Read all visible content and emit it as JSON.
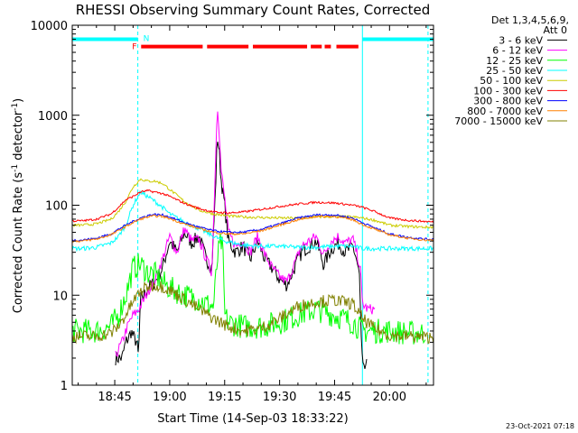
{
  "chart_data": {
    "type": "line",
    "title": "RHESSI Observing Summary Count Rates, Corrected",
    "xlabel": "Start Time (14-Sep-03 18:33:22)",
    "ylabel": "Corrected Count Rate (s^-1 detector^-1)",
    "ylabel_main": "Corrected Count Rate (s",
    "ylabel_exp1": "-1",
    "ylabel_mid": " detector",
    "ylabel_exp2": "-1",
    "ylabel_end": ")",
    "yscale": "log",
    "ylim": [
      1,
      10000
    ],
    "xlim_minutes": [
      33.4,
      132.0
    ],
    "x_unit": "minutes after 18:00 UT",
    "x_ticks": [
      {
        "value": 45,
        "label": "18:45"
      },
      {
        "value": 60,
        "label": "19:00"
      },
      {
        "value": 75,
        "label": "19:15"
      },
      {
        "value": 90,
        "label": "19:30"
      },
      {
        "value": 105,
        "label": "19:45"
      },
      {
        "value": 120,
        "label": "20:00"
      }
    ],
    "y_ticks": [
      {
        "value": 1,
        "label": "1"
      },
      {
        "value": 10,
        "label": "10"
      },
      {
        "value": 100,
        "label": "100"
      },
      {
        "value": 1000,
        "label": "1000"
      },
      {
        "value": 10000,
        "label": "10000"
      }
    ],
    "legend_header": [
      "Det 1,3,4,5,6,9,",
      "Att 0"
    ],
    "legend_placement": "right",
    "timestamp": "23-Oct-2021 07:18",
    "flags": {
      "night_label": "N",
      "flare_label": "F",
      "night_color": "#00ffff",
      "flare_color": "#ff0000",
      "night_level": 7000,
      "flare_level": 5800,
      "night_segments": [
        [
          33.4,
          51.3
        ],
        [
          112.6,
          132.0
        ]
      ],
      "flare_segments": [
        [
          52.2,
          69.0
        ],
        [
          70.2,
          81.5
        ],
        [
          82.7,
          97.5
        ],
        [
          98.5,
          101.5
        ],
        [
          102.3,
          104.0
        ],
        [
          105.5,
          111.5
        ]
      ],
      "boundary_lines": [
        33.4,
        51.3,
        112.6,
        130.5
      ]
    },
    "series": [
      {
        "name": "3 - 6 keV",
        "color": "#000000",
        "x": [
          45,
          46,
          47,
          48,
          49,
          49.5,
          50,
          51,
          51.5,
          52,
          53,
          54,
          56,
          58,
          60,
          62,
          64,
          66,
          68,
          70,
          71.5,
          72.5,
          73,
          73.5,
          74,
          75,
          76,
          78,
          80,
          82,
          84,
          86,
          88,
          90,
          92,
          94,
          96,
          98,
          100,
          102,
          104,
          106,
          108,
          110,
          111,
          111.8,
          112.3,
          112.6,
          113,
          113.5,
          114
        ],
        "values": [
          2,
          2,
          2,
          3,
          3.5,
          4,
          3.5,
          3,
          2,
          9,
          10,
          12,
          14,
          20,
          40,
          30,
          50,
          38,
          45,
          25,
          20,
          150,
          600,
          400,
          200,
          100,
          40,
          30,
          35,
          25,
          40,
          25,
          20,
          15,
          13,
          20,
          30,
          35,
          40,
          22,
          32,
          38,
          30,
          35,
          25,
          16,
          3,
          1.7,
          1.4,
          1.7,
          1.6
        ]
      },
      {
        "name": "6 - 12 keV",
        "color": "#ff00ff",
        "x": [
          45,
          46,
          47,
          48,
          49,
          50,
          51,
          52,
          53,
          54,
          56,
          58,
          60,
          62,
          64,
          66,
          68,
          70,
          71.5,
          72.5,
          73,
          73.5,
          74,
          75,
          76,
          78,
          80,
          82,
          84,
          86,
          88,
          90,
          92,
          94,
          96,
          98,
          100,
          102,
          104,
          106,
          108,
          110,
          111,
          112,
          112.6,
          114,
          116
        ],
        "values": [
          2,
          2.5,
          3,
          4,
          5,
          6,
          6.5,
          7.5,
          9,
          11,
          15,
          25,
          45,
          30,
          55,
          40,
          42,
          25,
          18,
          300,
          1400,
          700,
          250,
          120,
          50,
          35,
          40,
          30,
          45,
          28,
          20,
          16,
          14,
          22,
          35,
          40,
          45,
          28,
          40,
          45,
          38,
          42,
          30,
          20,
          8,
          7,
          7
        ]
      },
      {
        "name": "12 - 25 keV",
        "color": "#00ff00",
        "x": [
          33.4,
          36,
          40,
          44,
          46,
          48,
          50,
          52,
          54,
          56,
          58,
          60,
          64,
          68,
          70,
          72,
          73,
          74,
          74.5,
          75,
          76,
          80,
          85,
          90,
          95,
          100,
          105,
          110,
          112.6,
          115,
          120,
          125,
          130
        ],
        "values": [
          4,
          4,
          4,
          4.5,
          6,
          10,
          20,
          22,
          18,
          17,
          14,
          12,
          10,
          9,
          8,
          7.5,
          25,
          40,
          30,
          6,
          5,
          4.5,
          4.5,
          5,
          6,
          7,
          6,
          5,
          4,
          4,
          4,
          3.8,
          3.8
        ]
      },
      {
        "name": "25 - 50 keV",
        "color": "#00ffff",
        "x": [
          33.4,
          36,
          40,
          44,
          46,
          48,
          50,
          52,
          54,
          56,
          58,
          60,
          64,
          68,
          72,
          75,
          80,
          85,
          90,
          95,
          100,
          105,
          110,
          112.6,
          116,
          120,
          125,
          130,
          132
        ],
        "values": [
          33,
          33,
          34,
          38,
          45,
          60,
          100,
          140,
          125,
          110,
          95,
          80,
          65,
          55,
          45,
          40,
          36,
          35,
          35,
          34,
          34,
          35,
          35,
          33,
          33,
          33,
          33,
          33,
          33
        ]
      },
      {
        "name": "50 - 100 keV",
        "color": "#cccc00",
        "x": [
          33.4,
          36,
          40,
          44,
          46,
          48,
          50,
          52,
          54,
          56,
          58,
          60,
          64,
          68,
          72,
          76,
          80,
          85,
          90,
          95,
          100,
          105,
          110,
          112.6,
          116,
          120,
          125,
          130,
          132
        ],
        "values": [
          60,
          60,
          62,
          70,
          85,
          110,
          160,
          195,
          185,
          185,
          175,
          150,
          110,
          88,
          80,
          76,
          74,
          73,
          72,
          72,
          74,
          75,
          74,
          72,
          68,
          60,
          58,
          57,
          57
        ]
      },
      {
        "name": "100 - 300 keV",
        "color": "#ff0000",
        "x": [
          33.4,
          36,
          40,
          44,
          46,
          48,
          50,
          52,
          54,
          56,
          58,
          60,
          64,
          68,
          72,
          76,
          80,
          85,
          90,
          95,
          100,
          105,
          110,
          112.6,
          116,
          120,
          125,
          130,
          132
        ],
        "values": [
          67,
          67,
          70,
          80,
          95,
          115,
          125,
          140,
          145,
          140,
          135,
          125,
          105,
          92,
          84,
          82,
          84,
          90,
          97,
          103,
          108,
          106,
          100,
          95,
          85,
          72,
          68,
          66,
          65
        ]
      },
      {
        "name": "300 - 800 keV",
        "color": "#0000ff",
        "x": [
          33.4,
          36,
          40,
          44,
          46,
          48,
          50,
          52,
          54,
          56,
          58,
          60,
          64,
          68,
          72,
          76,
          80,
          85,
          90,
          95,
          100,
          105,
          110,
          112.6,
          116,
          120,
          125,
          130,
          132
        ],
        "values": [
          41,
          41,
          43,
          48,
          54,
          60,
          66,
          72,
          77,
          79,
          78,
          74,
          64,
          57,
          52,
          50,
          50,
          54,
          62,
          72,
          78,
          78,
          72,
          64,
          56,
          48,
          44,
          42,
          42
        ]
      },
      {
        "name": "800 - 7000 keV",
        "color": "#ff8000",
        "x": [
          33.4,
          36,
          40,
          44,
          46,
          48,
          50,
          52,
          54,
          56,
          58,
          60,
          64,
          68,
          72,
          76,
          80,
          85,
          90,
          95,
          100,
          105,
          110,
          112.6,
          116,
          120,
          125,
          130,
          132
        ],
        "values": [
          40,
          40,
          42,
          47,
          52,
          58,
          64,
          70,
          74,
          76,
          75,
          71,
          62,
          55,
          50,
          48,
          48,
          52,
          60,
          69,
          75,
          75,
          69,
          61,
          54,
          47,
          43,
          41,
          41
        ]
      },
      {
        "name": "7000 - 15000 keV",
        "color": "#808000",
        "x": [
          33.4,
          36,
          40,
          44,
          46,
          48,
          50,
          52,
          54,
          56,
          58,
          60,
          64,
          68,
          72,
          76,
          80,
          85,
          90,
          95,
          100,
          105,
          110,
          112.6,
          116,
          120,
          125,
          130,
          132
        ],
        "values": [
          3.5,
          3.5,
          3.5,
          3.8,
          4.5,
          6,
          8.5,
          11,
          12.5,
          13,
          12.5,
          11.5,
          9,
          7,
          5.5,
          4.5,
          4,
          4.3,
          5.5,
          7.5,
          8.5,
          8.8,
          8,
          5.5,
          4.2,
          3.6,
          3.5,
          3.4,
          3.4
        ]
      }
    ]
  }
}
